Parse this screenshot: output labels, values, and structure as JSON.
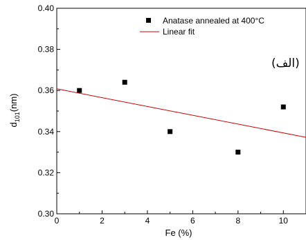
{
  "chart_data": {
    "type": "scatter",
    "xlabel": "Fe (%)",
    "ylabel_main": "d",
    "ylabel_sub": "101",
    "ylabel_unit": "(nm)",
    "xlim": [
      0,
      11
    ],
    "ylim": [
      0.3,
      0.4
    ],
    "x_ticks": [
      0,
      2,
      4,
      6,
      8,
      10
    ],
    "x_tick_labels": [
      "0",
      "2",
      "4",
      "6",
      "8",
      "10"
    ],
    "y_ticks": [
      0.3,
      0.32,
      0.34,
      0.36,
      0.38,
      0.4
    ],
    "y_tick_labels": [
      "0.30",
      "0.32",
      "0.34",
      "0.36",
      "0.38",
      "0.40"
    ],
    "grid": false,
    "legend_position": "top-right",
    "series": [
      {
        "name": "Anatase annealed at 400°C",
        "kind": "scatter",
        "color": "#000000",
        "marker": "square",
        "x": [
          1,
          3,
          5,
          8,
          10
        ],
        "y": [
          0.36,
          0.364,
          0.34,
          0.33,
          0.352
        ]
      },
      {
        "name": "Linear fit",
        "kind": "line",
        "color": "#cc0000",
        "x": [
          0,
          11
        ],
        "y": [
          0.3608,
          0.3372
        ]
      }
    ],
    "annotation": "(الف)"
  }
}
